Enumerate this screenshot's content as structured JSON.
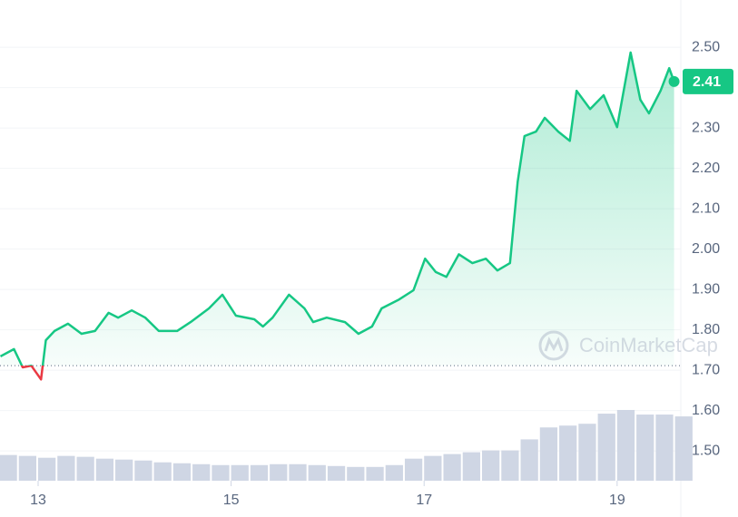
{
  "chart_data": {
    "type": "line",
    "watermark": "CoinMarketCap",
    "last_price_label": "2.41",
    "baseline": 1.711,
    "up_color": "#16c784",
    "down_color": "#ea3943",
    "xlim": [
      12.605,
      19.66
    ],
    "xticks": [
      13,
      15,
      17,
      19
    ],
    "ylim": [
      1.426,
      2.617
    ],
    "yticks": [
      {
        "value": 1.5,
        "label": "1.50"
      },
      {
        "value": 1.6,
        "label": "1.60"
      },
      {
        "value": 1.7,
        "label": "1.70"
      },
      {
        "value": 1.8,
        "label": "1.80"
      },
      {
        "value": 1.9,
        "label": "1.90"
      },
      {
        "value": 2.0,
        "label": "2.00"
      },
      {
        "value": 2.1,
        "label": "2.10"
      },
      {
        "value": 2.2,
        "label": "2.20"
      },
      {
        "value": 2.3,
        "label": "2.30"
      },
      {
        "value": 2.4,
        "label": "2.40"
      },
      {
        "value": 2.5,
        "label": "2.50"
      }
    ],
    "grid": true,
    "series": [
      {
        "color": "#16c784",
        "x": [
          12.61,
          12.75,
          12.84,
          12.93,
          13.03,
          13.08,
          13.17,
          13.31,
          13.45,
          13.59,
          13.73,
          13.83,
          13.97,
          14.11,
          14.25,
          14.44,
          14.58,
          14.77,
          14.91,
          15.05,
          15.24,
          15.33,
          15.43,
          15.6,
          15.76,
          15.85,
          15.99,
          16.18,
          16.32,
          16.46,
          16.56,
          16.74,
          16.89,
          17.01,
          17.12,
          17.23,
          17.36,
          17.5,
          17.64,
          17.76,
          17.89,
          17.97,
          18.04,
          18.16,
          18.25,
          18.39,
          18.51,
          18.58,
          18.72,
          18.86,
          19.0,
          19.14,
          19.24,
          19.33,
          19.45,
          19.54,
          19.59
        ],
        "values": [
          1.734,
          1.752,
          1.707,
          1.711,
          1.677,
          1.774,
          1.797,
          1.815,
          1.79,
          1.797,
          1.842,
          1.83,
          1.848,
          1.83,
          1.797,
          1.797,
          1.819,
          1.853,
          1.887,
          1.835,
          1.826,
          1.808,
          1.83,
          1.887,
          1.853,
          1.819,
          1.83,
          1.819,
          1.79,
          1.808,
          1.853,
          1.875,
          1.898,
          1.976,
          1.943,
          1.931,
          1.987,
          1.965,
          1.976,
          1.947,
          1.965,
          2.167,
          2.28,
          2.291,
          2.325,
          2.291,
          2.268,
          2.392,
          2.347,
          2.381,
          2.302,
          2.487,
          2.37,
          2.336,
          2.392,
          2.448,
          2.415
        ]
      }
    ],
    "volume": {
      "color": "#cfd6e4",
      "x": [
        12.6,
        12.8,
        13.0,
        13.2,
        13.4,
        13.6,
        13.8,
        14.0,
        14.2,
        14.4,
        14.6,
        14.8,
        15.0,
        15.2,
        15.4,
        15.6,
        15.8,
        16.0,
        16.2,
        16.4,
        16.6,
        16.8,
        17.0,
        17.2,
        17.4,
        17.6,
        17.8,
        18.0,
        18.2,
        18.4,
        18.6,
        18.8,
        19.0,
        19.2,
        19.4,
        19.6
      ],
      "values": [
        28,
        27,
        25,
        27,
        26,
        24,
        23,
        22,
        20,
        19,
        18,
        17,
        17,
        17,
        18,
        18,
        17,
        16,
        15,
        15,
        17,
        24,
        27,
        29,
        31,
        33,
        33,
        45,
        58,
        60,
        62,
        73,
        77,
        72,
        72,
        70
      ]
    }
  }
}
